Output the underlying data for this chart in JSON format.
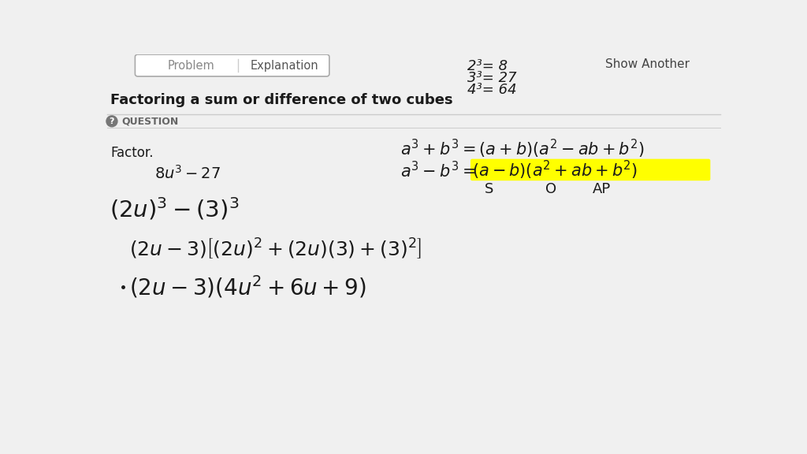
{
  "background_color": "#f0f0f0",
  "title": "Factoring a sum or difference of two cubes",
  "tab_labels": [
    "Problem",
    "Explanation"
  ],
  "show_another": "Show Another",
  "question_label": "QUESTION",
  "factor_label": "Factor.",
  "cubes_ref": [
    "2³= 8",
    "3³= 27",
    "4³= 64"
  ],
  "soa_labels": [
    "S",
    "O",
    "AP"
  ],
  "highlight_color": "#ffff00",
  "text_color": "#1a1a1a",
  "question_circle_color": "#777777",
  "line_color": "#cccccc"
}
